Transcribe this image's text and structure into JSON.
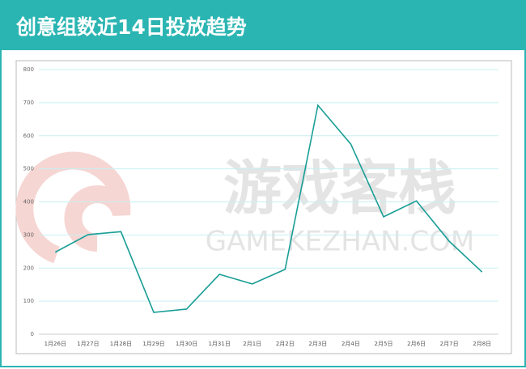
{
  "watermark": {
    "text": "游戏客栈",
    "subtext": "GAMEKEZHAN.COM"
  },
  "chart_data": {
    "type": "line",
    "title": "创意组数近14日投放趋势",
    "categories": [
      "1月26日",
      "1月27日",
      "1月28日",
      "1月29日",
      "1月30日",
      "1月31日",
      "2月1日",
      "2月2日",
      "2月3日",
      "2月4日",
      "2月5日",
      "2月6日",
      "2月7日",
      "2月8日"
    ],
    "values": [
      248,
      301,
      310,
      66,
      76,
      181,
      152,
      196,
      692,
      575,
      355,
      403,
      281,
      188
    ],
    "color": "#1a9e96",
    "ylim": [
      0,
      800
    ],
    "yticks": [
      0,
      100,
      200,
      300,
      400,
      500,
      600,
      700,
      800
    ],
    "grid": true
  }
}
